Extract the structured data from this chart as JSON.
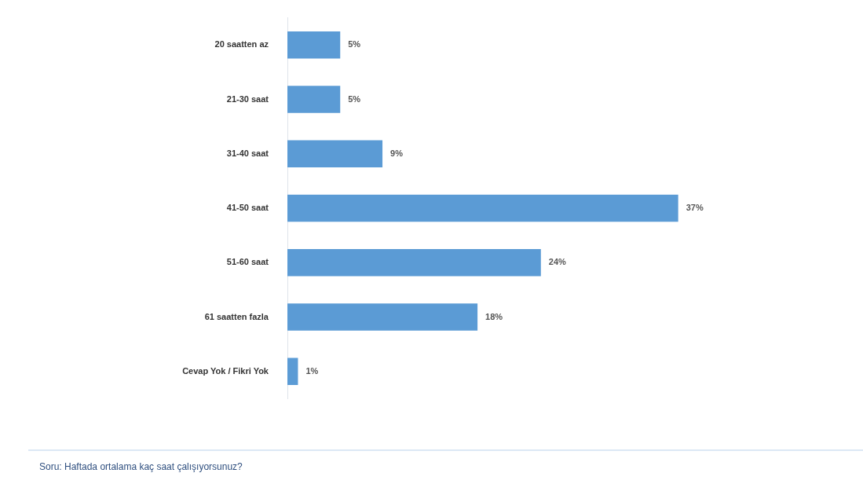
{
  "chart_data": {
    "type": "bar",
    "orientation": "horizontal",
    "categories": [
      "20 saatten az",
      "21-30 saat",
      "31-40 saat",
      "41-50 saat",
      "51-60 saat",
      "61 saatten fazla",
      "Cevap Yok / Fikri Yok"
    ],
    "values": [
      5,
      5,
      9,
      37,
      24,
      18,
      1
    ],
    "value_labels": [
      "5%",
      "5%",
      "9%",
      "37%",
      "24%",
      "18%",
      "1%"
    ],
    "color": "#5b9bd5",
    "tick_labels": "y",
    "grid": false,
    "legend": false,
    "annotations": [
      "Soru: Haftada ortalama kaç saat çalışıyorsunuz?"
    ]
  }
}
